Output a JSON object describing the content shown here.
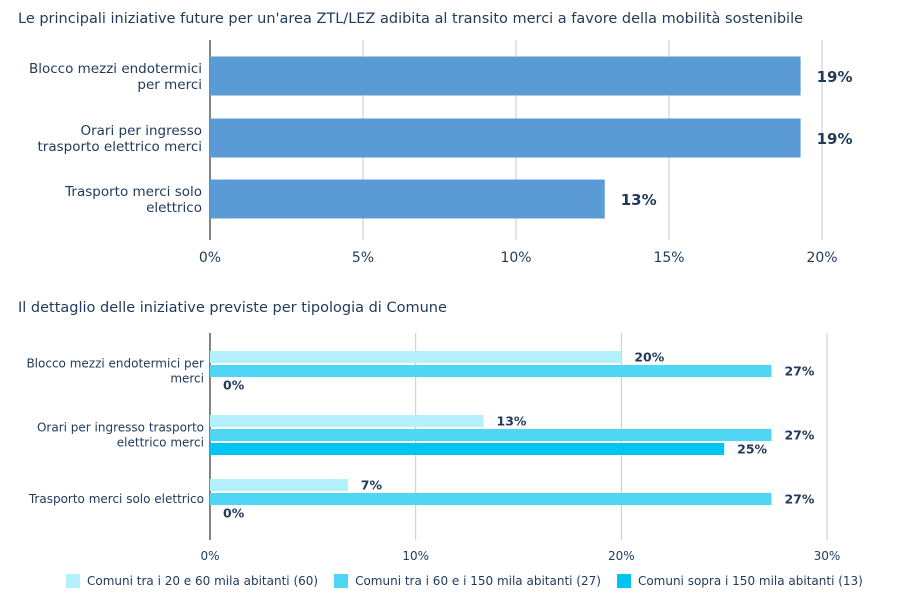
{
  "chart_data": [
    {
      "type": "bar",
      "orientation": "horizontal",
      "title": "Le principali iniziative future per un'area ZTL/LEZ adibita al transito merci a favore della mobilità sostenibile",
      "categories": [
        [
          "Blocco mezzi endotermici",
          "per merci"
        ],
        [
          "Orari per ingresso",
          "trasporto elettrico merci"
        ],
        [
          "Trasporto merci solo",
          "elettrico"
        ]
      ],
      "values": [
        19.3,
        19.3,
        12.9
      ],
      "value_labels": [
        "19%",
        "19%",
        "13%"
      ],
      "xlim": [
        0,
        20
      ],
      "xticks": [
        0,
        5,
        10,
        15,
        20
      ],
      "xtick_labels": [
        "0%",
        "5%",
        "10%",
        "15%",
        "20%"
      ],
      "grid": "vertical",
      "color": "#5b9bd5"
    },
    {
      "type": "bar",
      "orientation": "horizontal",
      "title": "Il dettaglio delle iniziative previste per tipologia di Comune",
      "categories": [
        [
          "Blocco mezzi endotermici per",
          "merci"
        ],
        [
          "Orari per ingresso trasporto",
          "elettrico merci"
        ],
        [
          "Trasporto merci solo elettrico"
        ]
      ],
      "series": [
        {
          "name": "Comuni tra i 20 e 60 mila abitanti (60)",
          "color": "#b3f0fb",
          "values": [
            20,
            13.3,
            6.7
          ],
          "labels": [
            "20%",
            "13%",
            "7%"
          ]
        },
        {
          "name": "Comuni tra i 60 e i 150 mila abitanti (27)",
          "color": "#4fd6f5",
          "values": [
            27.3,
            27.3,
            27.3
          ],
          "labels": [
            "27%",
            "27%",
            "27%"
          ]
        },
        {
          "name": "Comuni sopra i 150 mila abitanti (13)",
          "color": "#00c5f3",
          "values": [
            0,
            25,
            0
          ],
          "labels": [
            "0%",
            "25%",
            "0%"
          ]
        }
      ],
      "xlim": [
        0,
        30
      ],
      "xticks": [
        0,
        10,
        20,
        30
      ],
      "xtick_labels": [
        "0%",
        "10%",
        "20%",
        "30%"
      ],
      "grid": "vertical",
      "legend": "bottom"
    }
  ]
}
